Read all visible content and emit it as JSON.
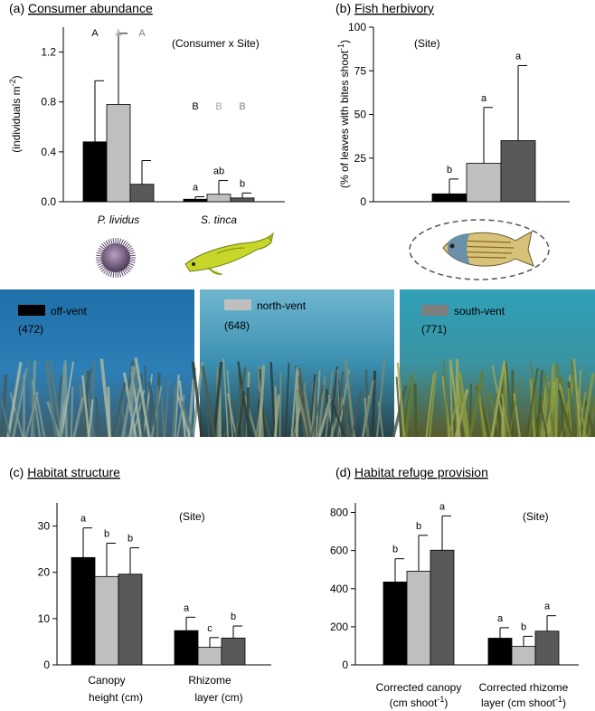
{
  "colors": {
    "off": "#000000",
    "north": "#bfbfbf",
    "south": "#595959"
  },
  "legend": [
    {
      "label": "off-vent",
      "count": "(472)",
      "color": "#000000"
    },
    {
      "label": "north-vent",
      "count": "(648)",
      "color": "#bfbfbf"
    },
    {
      "label": "south-vent",
      "count": "(771)",
      "color": "#7f7f7f"
    }
  ],
  "chart_data": [
    {
      "id": "a",
      "type": "bar",
      "title_prefix": "(a)",
      "title": "Consumer abundance",
      "ylabel_main": "(individuals m",
      "ylabel_sup": "-2",
      "ylabel_end": ")",
      "ylim": [
        0,
        1.4
      ],
      "yticks": [
        "0.0",
        "0.4",
        "0.8",
        "1.2"
      ],
      "ytick_values": [
        0,
        0.4,
        0.8,
        1.2
      ],
      "annotation": "(Consumer x Site)",
      "categories": [
        "P. lividus",
        "S. tinca"
      ],
      "series": [
        {
          "values": [
            0.48,
            0.02
          ],
          "errors": [
            0.97,
            0.04
          ]
        },
        {
          "values": [
            0.78,
            0.06
          ],
          "errors": [
            1.35,
            0.17
          ]
        },
        {
          "values": [
            0.14,
            0.03
          ],
          "errors": [
            0.33,
            0.07
          ]
        }
      ],
      "group_letters": [
        [
          "A",
          "A",
          "A"
        ],
        [
          "B",
          "B",
          "B"
        ]
      ],
      "bar_letters": [
        [
          "",
          "",
          ""
        ],
        [
          "a",
          "ab",
          "b"
        ]
      ]
    },
    {
      "id": "b",
      "type": "bar",
      "title_prefix": "(b)",
      "title": "Fish herbivory",
      "ylabel_main": "(% of leaves with bites shoot",
      "ylabel_sup": "-1",
      "ylabel_end": ")",
      "ylim": [
        0,
        100
      ],
      "yticks": [
        "0",
        "25",
        "50",
        "75",
        "100"
      ],
      "ytick_values": [
        0,
        25,
        50,
        75,
        100
      ],
      "annotation": "(Site)",
      "categories": [
        ""
      ],
      "series": [
        {
          "values": [
            4.5
          ],
          "errors": [
            13
          ]
        },
        {
          "values": [
            22
          ],
          "errors": [
            54
          ]
        },
        {
          "values": [
            35
          ],
          "errors": [
            78
          ]
        }
      ],
      "bar_letters": [
        [
          "b",
          "a",
          "a"
        ]
      ]
    },
    {
      "id": "c",
      "type": "bar",
      "title_prefix": "(c)",
      "title": "Habitat structure",
      "ylim": [
        0,
        35
      ],
      "yticks": [
        "0",
        "10",
        "20",
        "30"
      ],
      "ytick_values": [
        0,
        10,
        20,
        30
      ],
      "annotation": "(Site)",
      "categories": [
        "Canopy",
        "Rhizome"
      ],
      "categories_line2": [
        "height (cm)",
        "layer (cm)"
      ],
      "series": [
        {
          "values": [
            23.2,
            7.4
          ],
          "errors": [
            29.6,
            10.3
          ]
        },
        {
          "values": [
            19.1,
            3.8
          ],
          "errors": [
            26.3,
            5.9
          ]
        },
        {
          "values": [
            19.6,
            5.8
          ],
          "errors": [
            25.3,
            8.4
          ]
        }
      ],
      "bar_letters": [
        [
          "a",
          "b",
          "b"
        ],
        [
          "a",
          "c",
          "b"
        ]
      ]
    },
    {
      "id": "d",
      "type": "bar",
      "title_prefix": "(d)",
      "title": "Habitat refuge provision",
      "ylim": [
        0,
        850
      ],
      "yticks": [
        "0",
        "200",
        "400",
        "600",
        "800"
      ],
      "ytick_values": [
        0,
        200,
        400,
        600,
        800
      ],
      "annotation": "(Site)",
      "categories": [
        "Corrected canopy",
        "Corrected  rhizome"
      ],
      "categories_line2_main": [
        "(cm shoot",
        "layer (cm shoot"
      ],
      "categories_line2_sup": [
        "-1",
        "-1"
      ],
      "categories_line2_end": [
        ")",
        ")"
      ],
      "series": [
        {
          "values": [
            435,
            140
          ],
          "errors": [
            557,
            195
          ]
        },
        {
          "values": [
            492,
            97
          ],
          "errors": [
            680,
            150
          ]
        },
        {
          "values": [
            602,
            177
          ],
          "errors": [
            782,
            258
          ]
        }
      ],
      "bar_letters": [
        [
          "b",
          "b",
          "a"
        ],
        [
          "a",
          "b",
          "a"
        ]
      ]
    }
  ]
}
